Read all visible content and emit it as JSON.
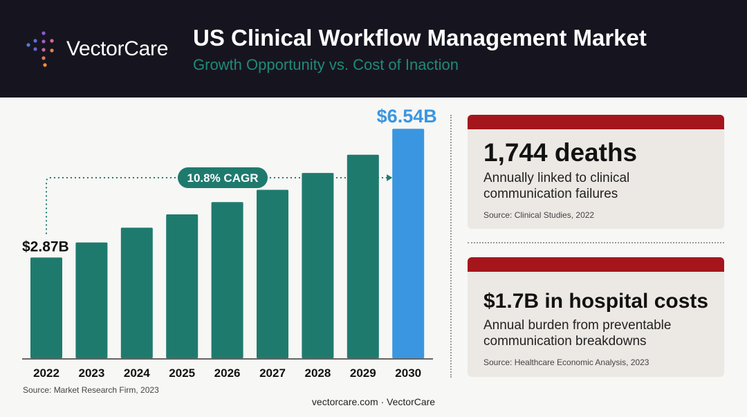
{
  "header": {
    "brand_name": "VectorCare",
    "title": "US Clinical Workflow Management Market",
    "subtitle": "Growth Opportunity vs. Cost of Inaction",
    "colors": {
      "background": "#16151f",
      "accent_teal": "#1f8a78"
    }
  },
  "chart_data": {
    "type": "bar",
    "categories": [
      "2022",
      "2023",
      "2024",
      "2025",
      "2026",
      "2027",
      "2028",
      "2029",
      "2030"
    ],
    "values": [
      2.87,
      3.3,
      3.72,
      4.1,
      4.45,
      4.8,
      5.28,
      5.8,
      6.54
    ],
    "unit": "USD billions",
    "ylim": [
      0,
      6.8
    ],
    "grid": false,
    "data_labels": [
      {
        "category": "2022",
        "text": "$2.87B"
      },
      {
        "category": "2030",
        "text": "$6.54B"
      }
    ],
    "annotation": {
      "text": "10.8% CAGR",
      "from": "2022",
      "to": "2030"
    },
    "colors": {
      "bar": "#1f7a6e",
      "highlight": "#3a96e0",
      "cagr": "#1f7a6e"
    },
    "source": "Source: Market Research Firm, 2023"
  },
  "cards": [
    {
      "headline": "1,744 deaths",
      "description": "Annually linked to clinical communication failures",
      "source": "Source: Clinical Studies, 2022"
    },
    {
      "headline": "$1.7B in hospital costs",
      "description": "Annual burden from preventable communication breakdowns",
      "source": "Source: Healthcare Economic Analysis, 2023"
    }
  ],
  "card_accent": "#a4161c",
  "footer": {
    "text": "vectorcare.com · VectorCare"
  }
}
